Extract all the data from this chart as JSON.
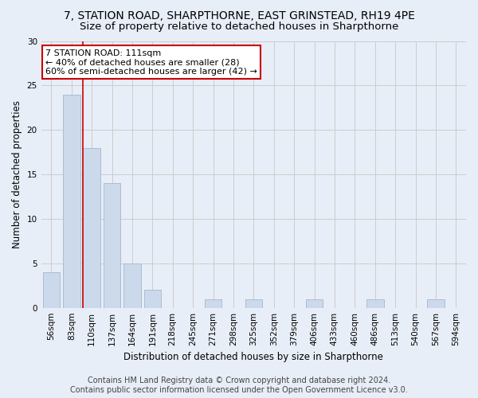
{
  "title": "7, STATION ROAD, SHARPTHORNE, EAST GRINSTEAD, RH19 4PE",
  "subtitle": "Size of property relative to detached houses in Sharpthorne",
  "xlabel": "Distribution of detached houses by size in Sharpthorne",
  "ylabel": "Number of detached properties",
  "bar_labels": [
    "56sqm",
    "83sqm",
    "110sqm",
    "137sqm",
    "164sqm",
    "191sqm",
    "218sqm",
    "245sqm",
    "271sqm",
    "298sqm",
    "325sqm",
    "352sqm",
    "379sqm",
    "406sqm",
    "433sqm",
    "460sqm",
    "486sqm",
    "513sqm",
    "540sqm",
    "567sqm",
    "594sqm"
  ],
  "bar_values": [
    4,
    24,
    18,
    14,
    5,
    2,
    0,
    0,
    1,
    0,
    1,
    0,
    0,
    1,
    0,
    0,
    1,
    0,
    0,
    1,
    0
  ],
  "bar_color": "#ccd9ea",
  "bar_edge_color": "#aabdd4",
  "annotation_text": "7 STATION ROAD: 111sqm\n← 40% of detached houses are smaller (28)\n60% of semi-detached houses are larger (42) →",
  "annotation_box_color": "#ffffff",
  "annotation_box_edge_color": "#cc0000",
  "vline_color": "#cc0000",
  "ylim": [
    0,
    30
  ],
  "yticks": [
    0,
    5,
    10,
    15,
    20,
    25,
    30
  ],
  "grid_color": "#cccccc",
  "background_color": "#e8eef7",
  "footer_line1": "Contains HM Land Registry data © Crown copyright and database right 2024.",
  "footer_line2": "Contains public sector information licensed under the Open Government Licence v3.0.",
  "title_fontsize": 10,
  "subtitle_fontsize": 9.5,
  "axis_label_fontsize": 8.5,
  "tick_fontsize": 7.5,
  "annotation_fontsize": 8,
  "footer_fontsize": 7
}
